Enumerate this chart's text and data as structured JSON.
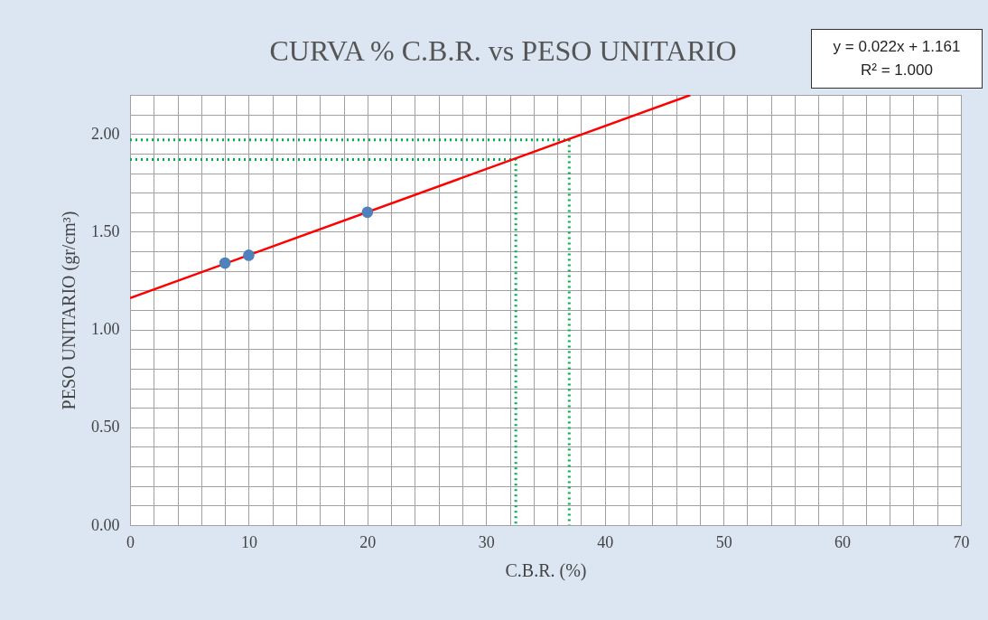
{
  "chart_data": {
    "type": "scatter",
    "title": "CURVA % C.B.R. vs PESO UNITARIO",
    "xlabel": "C.B.R. (%)",
    "ylabel": "PESO UNITARIO (gr/cm³)",
    "annotations": [
      "y = 0.022x + 1.161",
      "R² = 1.000"
    ],
    "xlim": [
      0,
      70
    ],
    "ylim": [
      0,
      2.2
    ],
    "xticks": [
      0,
      {
        "value": 2,
        "label": null
      },
      {
        "value": 4,
        "label": null
      },
      {
        "value": 6,
        "label": null
      },
      {
        "value": 8,
        "label": null
      },
      10,
      {
        "value": 12,
        "label": null
      },
      {
        "value": 14,
        "label": null
      },
      {
        "value": 16,
        "label": null
      },
      {
        "value": 18,
        "label": null
      },
      20,
      {
        "value": 22,
        "label": null
      },
      {
        "value": 24,
        "label": null
      },
      {
        "value": 26,
        "label": null
      },
      {
        "value": 28,
        "label": null
      },
      30,
      {
        "value": 32,
        "label": null
      },
      {
        "value": 34,
        "label": null
      },
      {
        "value": 36,
        "label": null
      },
      {
        "value": 38,
        "label": null
      },
      40,
      {
        "value": 42,
        "label": null
      },
      {
        "value": 44,
        "label": null
      },
      {
        "value": 46,
        "label": null
      },
      {
        "value": 48,
        "label": null
      },
      50,
      {
        "value": 52,
        "label": null
      },
      {
        "value": 54,
        "label": null
      },
      {
        "value": 56,
        "label": null
      },
      {
        "value": 58,
        "label": null
      },
      60,
      {
        "value": 62,
        "label": null
      },
      {
        "value": 64,
        "label": null
      },
      {
        "value": 66,
        "label": null
      },
      {
        "value": 68,
        "label": null
      },
      70
    ],
    "yticks": [
      {
        "value": 0,
        "label": "0.00"
      },
      {
        "value": 0.1,
        "label": null
      },
      {
        "value": 0.2,
        "label": null
      },
      {
        "value": 0.3,
        "label": null
      },
      {
        "value": 0.4,
        "label": null
      },
      {
        "value": 0.5,
        "label": "0.50"
      },
      {
        "value": 0.6,
        "label": null
      },
      {
        "value": 0.7,
        "label": null
      },
      {
        "value": 0.8,
        "label": null
      },
      {
        "value": 0.9,
        "label": null
      },
      {
        "value": 1.0,
        "label": "1.00"
      },
      {
        "value": 1.1,
        "label": null
      },
      {
        "value": 1.2,
        "label": null
      },
      {
        "value": 1.3,
        "label": null
      },
      {
        "value": 1.4,
        "label": null
      },
      {
        "value": 1.5,
        "label": "1.50"
      },
      {
        "value": 1.6,
        "label": null
      },
      {
        "value": 1.7,
        "label": null
      },
      {
        "value": 1.8,
        "label": null
      },
      {
        "value": 1.9,
        "label": null
      },
      {
        "value": 2.0,
        "label": "2.00"
      },
      {
        "value": 2.1,
        "label": null
      },
      {
        "value": 2.2,
        "label": null
      }
    ],
    "grid": true,
    "series": [
      {
        "type": "line",
        "color": "#00b050",
        "line_style": "dotted",
        "x": [
          0,
          37,
          37
        ],
        "values": [
          1.97,
          1.97,
          0
        ]
      },
      {
        "type": "line",
        "color": "#00b050",
        "line_style": "dotted",
        "x": [
          0,
          32.5,
          32.5
        ],
        "values": [
          1.87,
          1.87,
          0
        ]
      },
      {
        "type": "line",
        "color": "#ff0000",
        "line_style": "solid",
        "x": [
          0,
          47.2
        ],
        "values": [
          1.161,
          2.199
        ]
      },
      {
        "color": "#4f81bd",
        "marker": "circle",
        "x": [
          8,
          10,
          20
        ],
        "values": [
          1.34,
          1.38,
          1.6
        ]
      }
    ]
  }
}
